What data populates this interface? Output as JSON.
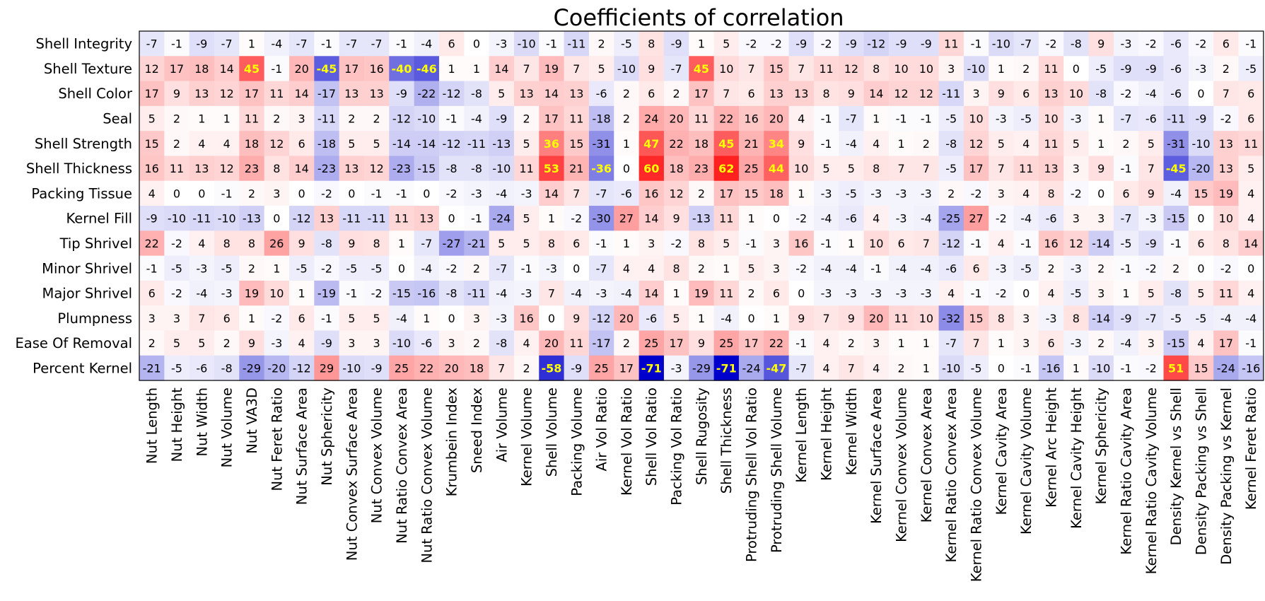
{
  "chart_data": {
    "type": "heatmap",
    "title": "Coefficients of correlation",
    "rows": [
      "Shell Integrity",
      "Shell Texture",
      "Shell Color",
      "Seal",
      "Shell Strength",
      "Shell Thickness",
      "Packing Tissue",
      "Kernel Fill",
      "Tip Shrivel",
      "Minor Shrivel",
      "Major Shrivel",
      "Plumpness",
      "Ease Of Removal",
      "Percent Kernel"
    ],
    "columns": [
      "Nut Length",
      "Nut Height",
      "Nut Width",
      "Nut Volume",
      "Nut VA3D",
      "Nut Feret Ratio",
      "Nut Surface Area",
      "Nut Sphericity",
      "Nut Convex Surface Area",
      "Nut Convex Volume",
      "Nut Ratio Convex Area",
      "Nut Ratio Convex Volume",
      "Krumbein Index",
      "Sneed Index",
      "Air Volume",
      "Kernel Volume",
      "Shell Volume",
      "Packing Volume",
      "Air Vol Ratio",
      "Kernel Vol Ratio",
      "Shell Vol Ratio",
      "Packing Vol Ratio",
      "Shell Rugosity",
      "Shell Thickness",
      "Protruding Shell Vol Ratio",
      "Protruding Shell Volume",
      "Kernel Length",
      "Kernel Height",
      "Kernel Width",
      "Kernel Surface Area",
      "Kernel Convex Volume",
      "Kernel Convex Area",
      "Kernel Ratio Convex Area",
      "Kernel Ratio Convex Volume",
      "Kernel Cavity Area",
      "Kernel Cavity Volume",
      "Kernel Arc Height",
      "Kernel Cavity Height",
      "Kernel Sphericity",
      "Kernel Ratio Cavity Area",
      "Kernel Ratio Cavity Volume",
      "Density Kernel vs Shell",
      "Density Packing vs Shell",
      "Density Packing vs Kernel",
      "Kernel Feret Ratio"
    ],
    "values": [
      [
        -7,
        -1,
        -9,
        -7,
        1,
        -4,
        -7,
        -1,
        -7,
        -7,
        -1,
        -4,
        6,
        0,
        -3,
        -10,
        -1,
        -11,
        2,
        -5,
        8,
        -9,
        1,
        5,
        -2,
        -2,
        -9,
        -2,
        -9,
        -12,
        -9,
        -9,
        11,
        -1,
        -10,
        -7,
        -2,
        -8,
        9,
        -3,
        -2,
        -6,
        -2,
        6,
        -1
      ],
      [
        12,
        17,
        18,
        14,
        45,
        -1,
        20,
        -45,
        17,
        16,
        -40,
        -46,
        1,
        1,
        14,
        7,
        19,
        7,
        5,
        -10,
        9,
        -7,
        45,
        10,
        7,
        15,
        7,
        11,
        12,
        8,
        10,
        10,
        3,
        -10,
        1,
        2,
        11,
        0,
        -5,
        -9,
        -9,
        -6,
        -3,
        2,
        -5
      ],
      [
        17,
        9,
        13,
        12,
        17,
        11,
        14,
        -17,
        13,
        13,
        -9,
        -22,
        -12,
        -8,
        5,
        13,
        14,
        13,
        -6,
        2,
        6,
        2,
        17,
        7,
        6,
        13,
        13,
        8,
        9,
        14,
        12,
        12,
        -11,
        3,
        9,
        6,
        13,
        10,
        -8,
        -2,
        -4,
        -6,
        0,
        7,
        6
      ],
      [
        5,
        2,
        1,
        1,
        11,
        2,
        3,
        -11,
        2,
        2,
        -12,
        -10,
        -1,
        -4,
        -9,
        2,
        17,
        11,
        -18,
        2,
        24,
        20,
        11,
        22,
        16,
        20,
        4,
        -1,
        -7,
        1,
        -1,
        -1,
        -5,
        10,
        -3,
        -5,
        10,
        -3,
        1,
        -7,
        -6,
        -11,
        -9,
        -2,
        6
      ],
      [
        15,
        2,
        4,
        4,
        18,
        12,
        6,
        -18,
        5,
        5,
        -14,
        -14,
        -12,
        -11,
        -13,
        5,
        36,
        15,
        -31,
        1,
        47,
        22,
        18,
        45,
        21,
        34,
        9,
        -1,
        -4,
        4,
        1,
        2,
        -8,
        12,
        5,
        4,
        11,
        5,
        1,
        2,
        5,
        -31,
        -10,
        13,
        11
      ],
      [
        16,
        11,
        13,
        12,
        23,
        8,
        14,
        -23,
        13,
        12,
        -23,
        -15,
        -8,
        -8,
        -10,
        11,
        53,
        21,
        -36,
        0,
        60,
        18,
        23,
        62,
        25,
        44,
        10,
        5,
        5,
        8,
        7,
        7,
        -5,
        17,
        7,
        11,
        13,
        3,
        9,
        -1,
        7,
        -45,
        -20,
        13,
        5
      ],
      [
        4,
        0,
        0,
        -1,
        2,
        3,
        0,
        -2,
        0,
        -1,
        -1,
        0,
        -2,
        -3,
        -4,
        -3,
        14,
        7,
        -7,
        -6,
        16,
        12,
        2,
        17,
        15,
        18,
        1,
        -3,
        -5,
        -3,
        -3,
        -3,
        2,
        -2,
        3,
        4,
        8,
        -2,
        0,
        6,
        9,
        -4,
        15,
        19,
        4
      ],
      [
        -9,
        -10,
        -11,
        -10,
        -13,
        0,
        -12,
        13,
        -11,
        -11,
        11,
        13,
        0,
        -1,
        -24,
        5,
        1,
        -2,
        -30,
        27,
        14,
        9,
        -13,
        11,
        1,
        0,
        -2,
        -4,
        -6,
        4,
        -3,
        -4,
        -25,
        27,
        -2,
        -4,
        -6,
        3,
        3,
        -7,
        -3,
        -15,
        0,
        10,
        4
      ],
      [
        22,
        -2,
        4,
        8,
        8,
        26,
        9,
        -8,
        9,
        8,
        1,
        -7,
        -27,
        -21,
        5,
        5,
        8,
        6,
        -1,
        1,
        3,
        -2,
        8,
        5,
        -1,
        3,
        16,
        -1,
        1,
        10,
        6,
        7,
        -12,
        -1,
        4,
        -1,
        16,
        12,
        -14,
        -5,
        -9,
        -1,
        6,
        8,
        14
      ],
      [
        -1,
        -5,
        -3,
        -5,
        2,
        1,
        -5,
        -2,
        -5,
        -5,
        0,
        -4,
        -2,
        2,
        -7,
        -1,
        -3,
        0,
        -7,
        4,
        4,
        8,
        2,
        1,
        5,
        3,
        -2,
        -4,
        -4,
        -1,
        -4,
        -4,
        -6,
        6,
        -3,
        -5,
        2,
        -3,
        2,
        -1,
        -2,
        2,
        0,
        -2,
        0
      ],
      [
        6,
        -2,
        -4,
        -3,
        19,
        10,
        1,
        -19,
        -1,
        -2,
        -15,
        -16,
        -8,
        -11,
        -4,
        -3,
        7,
        -4,
        -3,
        -4,
        14,
        1,
        19,
        11,
        2,
        6,
        0,
        -3,
        -3,
        -3,
        -3,
        -3,
        4,
        -1,
        -2,
        0,
        4,
        -5,
        3,
        1,
        5,
        -8,
        5,
        11,
        4
      ],
      [
        3,
        3,
        7,
        6,
        1,
        -2,
        6,
        -1,
        5,
        5,
        -4,
        1,
        0,
        3,
        -3,
        16,
        0,
        9,
        -12,
        20,
        -6,
        5,
        1,
        -4,
        0,
        1,
        9,
        7,
        9,
        20,
        11,
        10,
        -32,
        15,
        8,
        3,
        -3,
        8,
        -14,
        -9,
        -7,
        -5,
        -5,
        -4,
        -4
      ],
      [
        2,
        5,
        5,
        2,
        9,
        -3,
        4,
        -9,
        3,
        3,
        -10,
        -6,
        3,
        2,
        -8,
        4,
        20,
        11,
        -17,
        2,
        25,
        17,
        9,
        25,
        17,
        22,
        -1,
        4,
        2,
        3,
        1,
        1,
        -7,
        7,
        1,
        3,
        6,
        -3,
        2,
        -4,
        3,
        -15,
        4,
        17,
        -1
      ],
      [
        -21,
        -5,
        -6,
        -8,
        -29,
        -20,
        -12,
        29,
        -10,
        -9,
        25,
        22,
        20,
        18,
        7,
        2,
        -58,
        -9,
        25,
        17,
        -71,
        -3,
        -29,
        -71,
        -24,
        -47,
        -7,
        4,
        7,
        4,
        2,
        1,
        -10,
        -5,
        0,
        -1,
        -16,
        1,
        -10,
        -1,
        -2,
        51,
        15,
        -24,
        -16
      ]
    ],
    "highlight_threshold": 34,
    "colormap": "bwr",
    "vmin": -71,
    "vmax": 71,
    "grid": false,
    "legend": "none"
  },
  "colors": {
    "negative_max": "#0000cc",
    "neutral": "#ffffff",
    "positive_max": "#ff0000",
    "highlight_text": "#ffff00",
    "normal_text": "#000000"
  }
}
